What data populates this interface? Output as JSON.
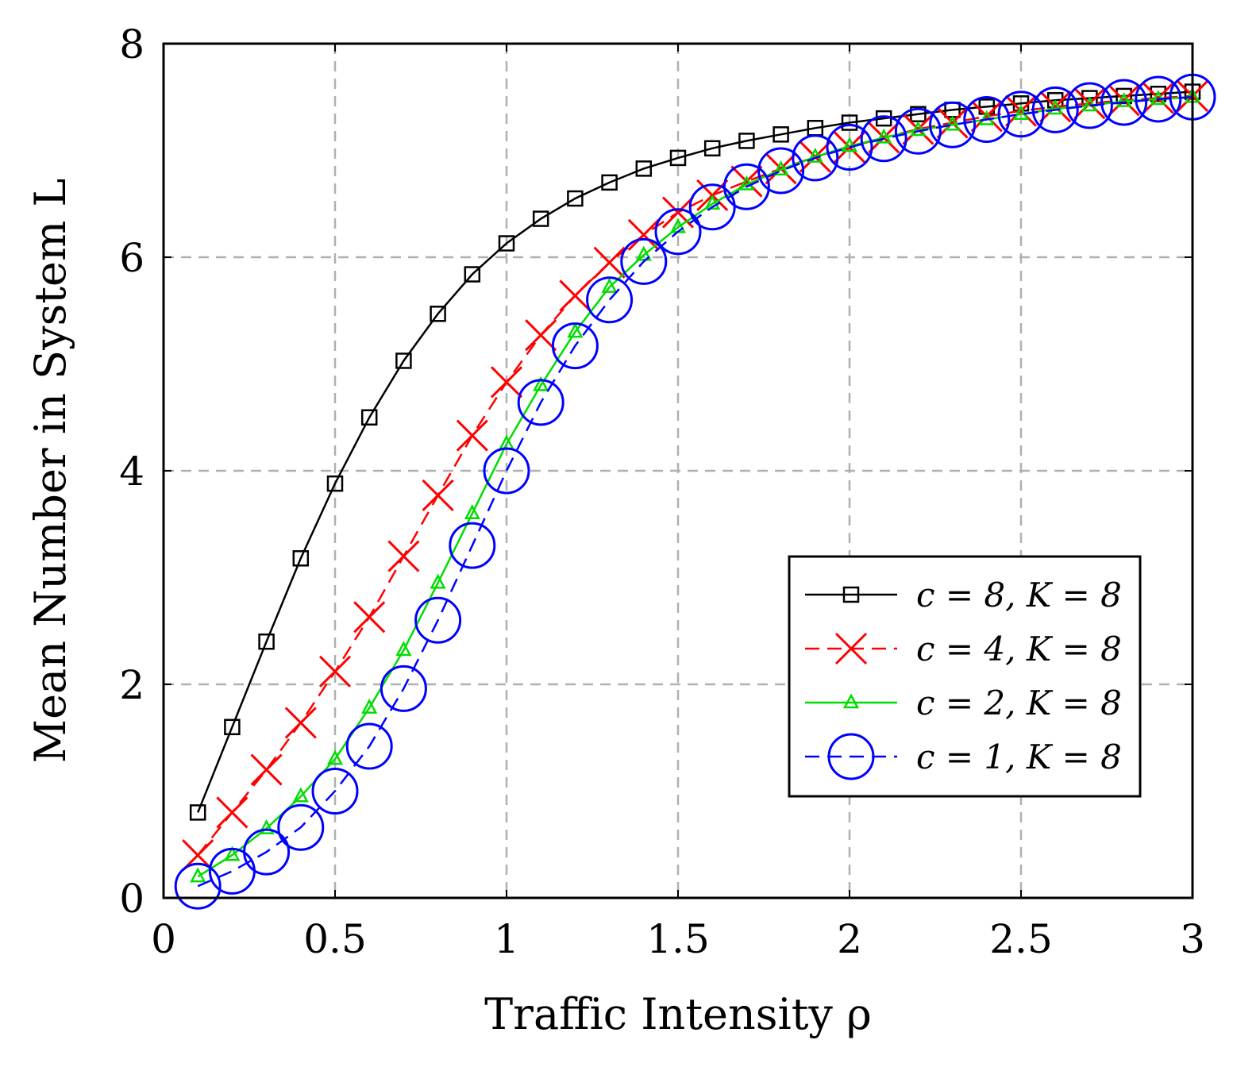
{
  "chart_data": {
    "type": "line",
    "title": "",
    "xlabel": "Traffic Intensity ρ",
    "ylabel": "Mean Number in System L",
    "xlim": [
      0,
      3
    ],
    "ylim": [
      0,
      8
    ],
    "xticks": [
      0,
      0.5,
      1,
      1.5,
      2,
      2.5,
      3
    ],
    "xtick_labels": [
      "0",
      "0.5",
      "1",
      "1.5",
      "2",
      "2.5",
      "3"
    ],
    "yticks": [
      0,
      2,
      4,
      6,
      8
    ],
    "ytick_labels": [
      "0",
      "2",
      "4",
      "6",
      "8"
    ],
    "grid": true,
    "legend_position": "center-right",
    "x": [
      0.1,
      0.2,
      0.3,
      0.4,
      0.5,
      0.6,
      0.7,
      0.8,
      0.9,
      1.0,
      1.1,
      1.2,
      1.3,
      1.4,
      1.5,
      1.6,
      1.7,
      1.8,
      1.9,
      2.0,
      2.1,
      2.2,
      2.3,
      2.4,
      2.5,
      2.6,
      2.7,
      2.8,
      2.9,
      3.0
    ],
    "series": [
      {
        "name": "c = 8, K = 8",
        "color": "#000000",
        "marker": "square",
        "line": "solid",
        "values": [
          0.8,
          1.6,
          2.4,
          3.18,
          3.88,
          4.5,
          5.03,
          5.47,
          5.84,
          6.13,
          6.36,
          6.55,
          6.7,
          6.83,
          6.93,
          7.02,
          7.09,
          7.15,
          7.21,
          7.26,
          7.3,
          7.34,
          7.38,
          7.41,
          7.44,
          7.47,
          7.49,
          7.51,
          7.53,
          7.55
        ]
      },
      {
        "name": "c = 4, K = 8",
        "color": "#ff0000",
        "marker": "x",
        "line": "dashed",
        "values": [
          0.4,
          0.8,
          1.2,
          1.64,
          2.12,
          2.63,
          3.2,
          3.77,
          4.33,
          4.83,
          5.27,
          5.64,
          5.95,
          6.21,
          6.42,
          6.58,
          6.71,
          6.83,
          6.94,
          7.03,
          7.12,
          7.2,
          7.26,
          7.32,
          7.37,
          7.41,
          7.44,
          7.47,
          7.49,
          7.51
        ]
      },
      {
        "name": "c = 2, K = 8",
        "color": "#00dd00",
        "marker": "triangle",
        "line": "solid",
        "values": [
          0.2,
          0.4,
          0.65,
          0.95,
          1.3,
          1.78,
          2.32,
          2.95,
          3.6,
          4.25,
          4.8,
          5.3,
          5.72,
          6.02,
          6.28,
          6.5,
          6.68,
          6.82,
          6.94,
          7.04,
          7.12,
          7.19,
          7.24,
          7.29,
          7.34,
          7.39,
          7.42,
          7.46,
          7.48,
          7.5
        ]
      },
      {
        "name": "c = 1, K = 8",
        "color": "#0000ff",
        "marker": "circle",
        "line": "dashed",
        "values": [
          0.11,
          0.25,
          0.43,
          0.66,
          1.0,
          1.42,
          1.96,
          2.6,
          3.3,
          4.0,
          4.64,
          5.17,
          5.6,
          5.96,
          6.24,
          6.47,
          6.66,
          6.81,
          6.93,
          7.03,
          7.11,
          7.18,
          7.24,
          7.29,
          7.34,
          7.38,
          7.42,
          7.45,
          7.48,
          7.5
        ]
      }
    ]
  }
}
